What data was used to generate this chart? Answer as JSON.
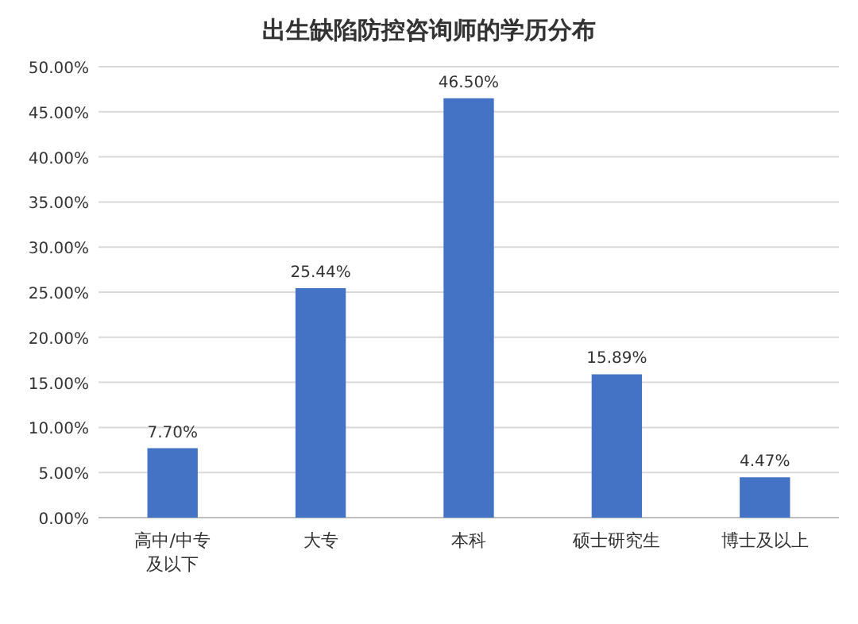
{
  "chart_data": {
    "type": "bar",
    "title": "出生缺陷防控咨询师的学历分布",
    "categories": [
      "高中/中专及以下",
      "大专",
      "本科",
      "硕士研究生",
      "博士及以上"
    ],
    "values": [
      7.7,
      25.44,
      46.5,
      15.89,
      4.47
    ],
    "value_labels": [
      "7.70%",
      "25.44%",
      "46.50%",
      "15.89%",
      "4.47%"
    ],
    "color": "#4472c4",
    "ylim": [
      0,
      50
    ],
    "yticks": [
      {
        "value": 0,
        "label": "0.00%"
      },
      {
        "value": 5,
        "label": "5.00%"
      },
      {
        "value": 10,
        "label": "10.00%"
      },
      {
        "value": 15,
        "label": "15.00%"
      },
      {
        "value": 20,
        "label": "20.00%"
      },
      {
        "value": 25,
        "label": "25.00%"
      },
      {
        "value": 30,
        "label": "30.00%"
      },
      {
        "value": 35,
        "label": "35.00%"
      },
      {
        "value": 40,
        "label": "40.00%"
      },
      {
        "value": 45,
        "label": "45.00%"
      },
      {
        "value": 50,
        "label": "50.00%"
      }
    ],
    "grid": "y"
  }
}
